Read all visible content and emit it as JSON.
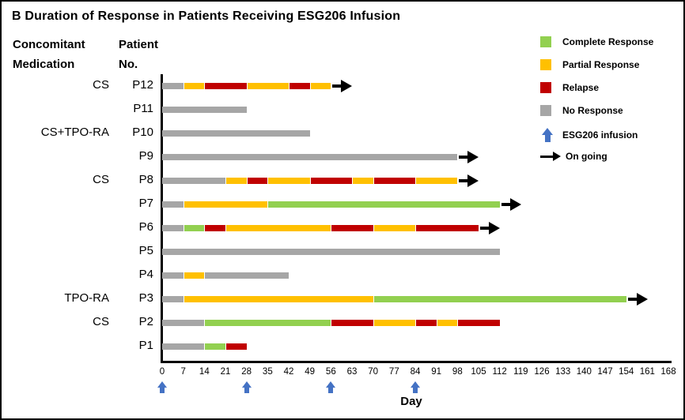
{
  "title": "B Duration of Response in Patients Receiving ESG206 Infusion",
  "headers": {
    "medication_line1": "Concomitant",
    "medication_line2": "Medication",
    "patient_line1": "Patient",
    "patient_line2": "No."
  },
  "legend": [
    {
      "label": "Complete Response",
      "type": "swatch",
      "color": "#92d050"
    },
    {
      "label": "Partial Response",
      "type": "swatch",
      "color": "#ffc000"
    },
    {
      "label": "Relapse",
      "type": "swatch",
      "color": "#c00000"
    },
    {
      "label": "No Response",
      "type": "swatch",
      "color": "#a6a6a6"
    },
    {
      "label": "ESG206 infusion",
      "type": "up-arrow",
      "color": "#4472c4"
    },
    {
      "label": "On going",
      "type": "right-arrow",
      "color": "#000000"
    }
  ],
  "chart_data": {
    "type": "bar",
    "subtype": "swimmer-plot",
    "title": "B Duration of Response in Patients Receiving ESG206 Infusion",
    "xlabel": "Day",
    "xlim": [
      0,
      168
    ],
    "x_ticks": [
      0,
      7,
      14,
      21,
      28,
      35,
      42,
      49,
      56,
      63,
      70,
      77,
      84,
      91,
      98,
      105,
      112,
      119,
      126,
      133,
      140,
      147,
      154,
      161,
      168
    ],
    "infusion_days": [
      0,
      28,
      56,
      84
    ],
    "status_colors": {
      "complete": "#92d050",
      "partial": "#ffc000",
      "relapse": "#c00000",
      "none": "#a6a6a6"
    },
    "infusion_color": "#4472c4",
    "patients": [
      {
        "id": "P12",
        "medication": "CS",
        "ongoing": true,
        "segments": [
          {
            "status": "none",
            "start": 0,
            "end": 7
          },
          {
            "status": "partial",
            "start": 7,
            "end": 14
          },
          {
            "status": "relapse",
            "start": 14,
            "end": 28
          },
          {
            "status": "partial",
            "start": 28,
            "end": 42
          },
          {
            "status": "relapse",
            "start": 42,
            "end": 49
          },
          {
            "status": "partial",
            "start": 49,
            "end": 56
          }
        ]
      },
      {
        "id": "P11",
        "medication": "",
        "ongoing": false,
        "segments": [
          {
            "status": "none",
            "start": 0,
            "end": 28
          }
        ]
      },
      {
        "id": "P10",
        "medication": "CS+TPO-RA",
        "ongoing": false,
        "segments": [
          {
            "status": "none",
            "start": 0,
            "end": 49
          }
        ]
      },
      {
        "id": "P9",
        "medication": "",
        "ongoing": true,
        "segments": [
          {
            "status": "none",
            "start": 0,
            "end": 98
          }
        ]
      },
      {
        "id": "P8",
        "medication": "CS",
        "ongoing": true,
        "segments": [
          {
            "status": "none",
            "start": 0,
            "end": 21
          },
          {
            "status": "partial",
            "start": 21,
            "end": 28
          },
          {
            "status": "relapse",
            "start": 28,
            "end": 35
          },
          {
            "status": "partial",
            "start": 35,
            "end": 49
          },
          {
            "status": "relapse",
            "start": 49,
            "end": 63
          },
          {
            "status": "partial",
            "start": 63,
            "end": 70
          },
          {
            "status": "relapse",
            "start": 70,
            "end": 84
          },
          {
            "status": "partial",
            "start": 84,
            "end": 98
          }
        ]
      },
      {
        "id": "P7",
        "medication": "",
        "ongoing": true,
        "segments": [
          {
            "status": "none",
            "start": 0,
            "end": 7
          },
          {
            "status": "partial",
            "start": 7,
            "end": 35
          },
          {
            "status": "complete",
            "start": 35,
            "end": 112
          }
        ]
      },
      {
        "id": "P6",
        "medication": "",
        "ongoing": true,
        "segments": [
          {
            "status": "none",
            "start": 0,
            "end": 7
          },
          {
            "status": "complete",
            "start": 7,
            "end": 14
          },
          {
            "status": "relapse",
            "start": 14,
            "end": 21
          },
          {
            "status": "partial",
            "start": 21,
            "end": 56
          },
          {
            "status": "relapse",
            "start": 56,
            "end": 70
          },
          {
            "status": "partial",
            "start": 70,
            "end": 84
          },
          {
            "status": "relapse",
            "start": 84,
            "end": 105
          }
        ]
      },
      {
        "id": "P5",
        "medication": "",
        "ongoing": false,
        "segments": [
          {
            "status": "none",
            "start": 0,
            "end": 112
          }
        ]
      },
      {
        "id": "P4",
        "medication": "",
        "ongoing": false,
        "segments": [
          {
            "status": "none",
            "start": 0,
            "end": 7
          },
          {
            "status": "partial",
            "start": 7,
            "end": 14
          },
          {
            "status": "none",
            "start": 14,
            "end": 42
          }
        ]
      },
      {
        "id": "P3",
        "medication": "TPO-RA",
        "ongoing": true,
        "segments": [
          {
            "status": "none",
            "start": 0,
            "end": 7
          },
          {
            "status": "partial",
            "start": 7,
            "end": 70
          },
          {
            "status": "complete",
            "start": 70,
            "end": 154
          }
        ]
      },
      {
        "id": "P2",
        "medication": "CS",
        "ongoing": false,
        "segments": [
          {
            "status": "none",
            "start": 0,
            "end": 14
          },
          {
            "status": "complete",
            "start": 14,
            "end": 56
          },
          {
            "status": "relapse",
            "start": 56,
            "end": 70
          },
          {
            "status": "partial",
            "start": 70,
            "end": 84
          },
          {
            "status": "relapse",
            "start": 84,
            "end": 91
          },
          {
            "status": "partial",
            "start": 91,
            "end": 98
          },
          {
            "status": "relapse",
            "start": 98,
            "end": 112
          }
        ]
      },
      {
        "id": "P1",
        "medication": "",
        "ongoing": false,
        "segments": [
          {
            "status": "none",
            "start": 0,
            "end": 14
          },
          {
            "status": "complete",
            "start": 14,
            "end": 21
          },
          {
            "status": "relapse",
            "start": 21,
            "end": 28
          }
        ]
      }
    ]
  }
}
